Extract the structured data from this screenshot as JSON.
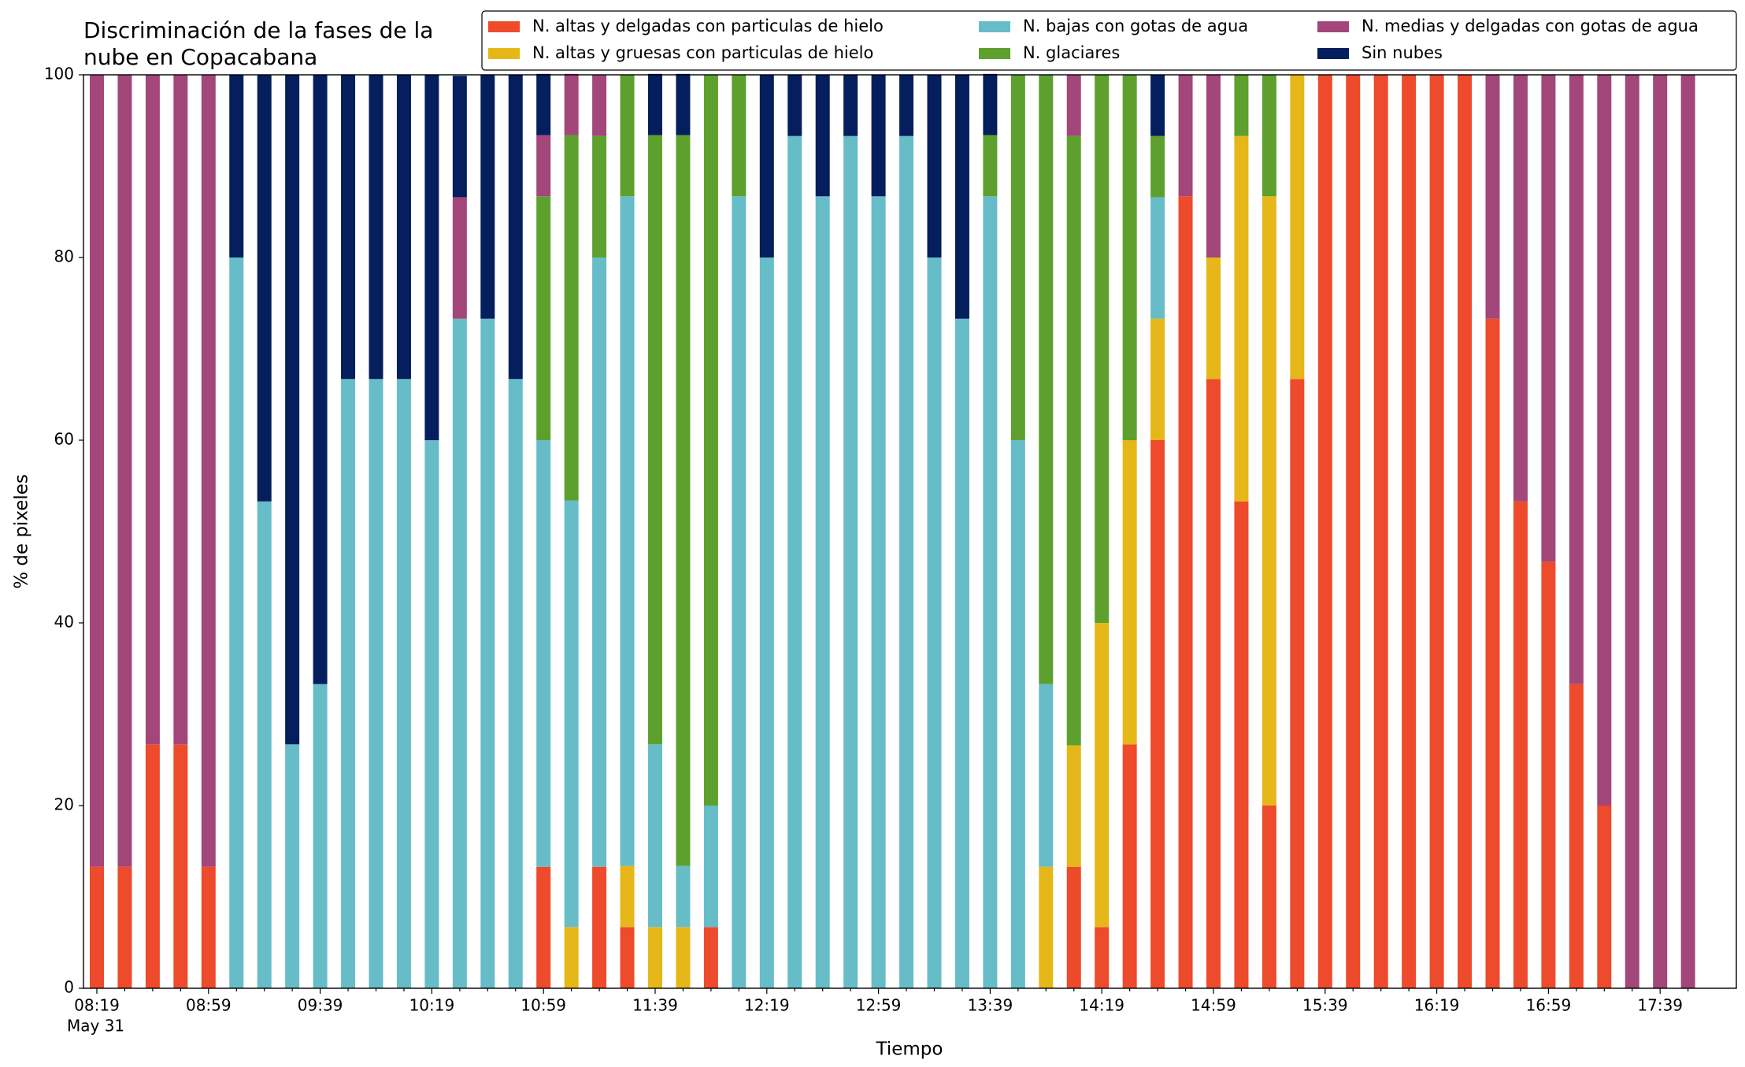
{
  "chart_data": {
    "type": "stacked_bar",
    "title": [
      "Discriminación de la fases de la",
      "nube en Copacabana"
    ],
    "xlabel": "Tiempo",
    "ylabel": "% de pixeles",
    "x_date_label": "May 31",
    "categories": [
      "08:19",
      null,
      null,
      null,
      "08:59",
      null,
      null,
      null,
      "09:39",
      null,
      null,
      null,
      "10:19",
      null,
      null,
      null,
      "10:59",
      null,
      null,
      null,
      "11:39",
      null,
      null,
      null,
      "12:19",
      null,
      null,
      null,
      "12:59",
      null,
      null,
      null,
      "13:39",
      null,
      null,
      null,
      "14:19",
      null,
      null,
      null,
      "14:59",
      null,
      null,
      null,
      "15:39",
      null,
      null,
      null,
      "16:19",
      null,
      null,
      null,
      "16:59",
      null,
      null,
      null,
      "17:39",
      null
    ],
    "ylim": [
      0,
      100
    ],
    "yticks": [
      0,
      20,
      40,
      60,
      80,
      100
    ],
    "legend": "top-right",
    "series": [
      {
        "name": "N. altas y delgadas con particulas de hielo",
        "color": "#ee4a2c",
        "values": [
          13.3,
          13.3,
          26.7,
          26.7,
          13.3,
          0,
          0,
          0,
          0,
          0,
          0,
          0,
          0,
          0,
          0,
          0,
          13.3,
          0,
          13.3,
          6.7,
          0,
          0,
          6.7,
          0,
          0,
          0,
          0,
          0,
          0,
          0,
          0,
          0,
          0,
          0,
          0,
          13.3,
          6.7,
          26.7,
          60,
          86.7,
          66.7,
          53.3,
          20,
          66.7,
          100,
          100,
          100,
          100,
          100,
          100,
          73.3,
          53.3,
          46.7,
          33.3,
          20,
          0,
          0,
          0
        ]
      },
      {
        "name": "N. altas y gruesas con particulas de hielo",
        "color": "#e6b718",
        "values": [
          0,
          0,
          0,
          0,
          0,
          0,
          0,
          0,
          0,
          0,
          0,
          0,
          0,
          0,
          0,
          0,
          0,
          6.7,
          0,
          6.7,
          6.7,
          6.7,
          0,
          0,
          0,
          0,
          0,
          0,
          0,
          0,
          0,
          0,
          0,
          0,
          13.3,
          13.3,
          33.3,
          33.3,
          13.3,
          0,
          13.3,
          40,
          66.7,
          33.3,
          0,
          0,
          0,
          0,
          0,
          0,
          0,
          0,
          0,
          0,
          0,
          0,
          0,
          0
        ]
      },
      {
        "name": "N. bajas con gotas de agua",
        "color": "#66bdc8",
        "values": [
          0,
          0,
          0,
          0,
          0,
          80,
          53.3,
          26.7,
          33.3,
          66.7,
          66.7,
          66.7,
          60,
          73.3,
          73.3,
          66.7,
          46.7,
          46.7,
          66.7,
          73.3,
          20,
          6.7,
          13.3,
          86.7,
          80,
          93.3,
          86.7,
          93.3,
          86.7,
          93.3,
          80,
          73.3,
          86.7,
          60,
          20,
          0,
          0,
          0,
          13.3,
          0,
          0,
          0,
          0,
          0,
          0,
          0,
          0,
          0,
          0,
          0,
          0,
          0,
          0,
          0,
          0,
          0,
          0,
          0
        ]
      },
      {
        "name": "N. glaciares",
        "color": "#5ea02d",
        "values": [
          0,
          0,
          0,
          0,
          0,
          0,
          0,
          0,
          0,
          0,
          0,
          0,
          0,
          0,
          0,
          0,
          26.7,
          40,
          13.3,
          13.3,
          66.7,
          80,
          80,
          13.3,
          0,
          0,
          0,
          0,
          0,
          0,
          0,
          0,
          6.7,
          40,
          66.7,
          66.7,
          60,
          40,
          6.7,
          0,
          0,
          6.7,
          13.3,
          0,
          0,
          0,
          0,
          0,
          0,
          0,
          0,
          0,
          0,
          0,
          0,
          0,
          0,
          0
        ]
      },
      {
        "name": "N. medias y delgadas con gotas de agua",
        "color": "#a3467a",
        "values": [
          86.7,
          86.7,
          73.3,
          73.3,
          86.7,
          0,
          0,
          0,
          0,
          0,
          0,
          0,
          0,
          13.3,
          0,
          0,
          6.7,
          6.7,
          6.7,
          0,
          0,
          0,
          0,
          0,
          0,
          0,
          0,
          0,
          0,
          0,
          0,
          0,
          0,
          0,
          0,
          6.7,
          0,
          0,
          0,
          13.3,
          20,
          0,
          0,
          0,
          0,
          0,
          0,
          0,
          0,
          0,
          26.7,
          46.7,
          53.3,
          66.7,
          80,
          100,
          100,
          100
        ]
      },
      {
        "name": "Sin nubes",
        "color": "#041e5e",
        "values": [
          0,
          0,
          0,
          0,
          0,
          20,
          46.7,
          73.3,
          66.7,
          33.3,
          33.3,
          33.3,
          40,
          13.3,
          26.7,
          33.3,
          6.7,
          0,
          0,
          0,
          6.7,
          6.7,
          0,
          0,
          20,
          6.7,
          13.3,
          6.7,
          13.3,
          6.7,
          20,
          26.7,
          6.7,
          0,
          0,
          0,
          0,
          0,
          6.7,
          0,
          0,
          0,
          0,
          0,
          0,
          0,
          0,
          0,
          0,
          0,
          0,
          0,
          0,
          0,
          0,
          0,
          0,
          0
        ]
      }
    ]
  }
}
